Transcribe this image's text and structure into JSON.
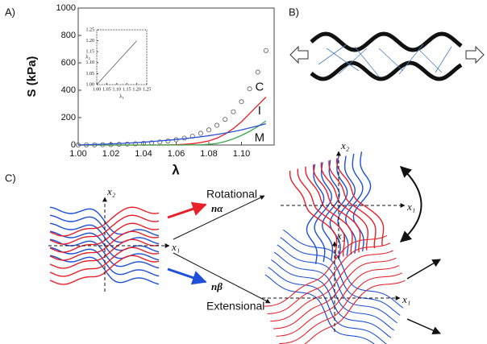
{
  "panel_labels": [
    "A)",
    "B)",
    "C)"
  ],
  "chart_data": [
    {
      "type": "scatter",
      "x_label": "λ",
      "y_label": "S (kPa)",
      "x": [
        1.0,
        1.005,
        1.01,
        1.015,
        1.02,
        1.025,
        1.03,
        1.035,
        1.04,
        1.045,
        1.05,
        1.055,
        1.06,
        1.065,
        1.07,
        1.075,
        1.08,
        1.085,
        1.09,
        1.095,
        1.1,
        1.105,
        1.11,
        1.115
      ],
      "series": [
        {
          "mode": "markers",
          "color": "#555555",
          "values": [
            0,
            1,
            1,
            2,
            3,
            5,
            7,
            9,
            12,
            16,
            22,
            29,
            38,
            50,
            65,
            85,
            110,
            144,
            187,
            243,
            316,
            410,
            532,
            690
          ]
        },
        {
          "name": "C",
          "mode": "line",
          "color": "#e8202a",
          "values": [
            0,
            0,
            0,
            0,
            0,
            0,
            0,
            0,
            0,
            0,
            0,
            1,
            2,
            5,
            10,
            18,
            30,
            50,
            80,
            120,
            170,
            230,
            290,
            350
          ]
        },
        {
          "name": "I",
          "mode": "line",
          "color": "#3aa64a",
          "values": [
            0,
            0,
            0,
            0,
            0,
            0,
            0,
            0,
            0,
            0,
            0,
            0,
            0,
            0,
            1,
            2,
            5,
            12,
            25,
            45,
            70,
            100,
            135,
            175
          ]
        },
        {
          "name": "M",
          "mode": "line",
          "color": "#2a4fd8",
          "values": [
            0,
            2,
            4,
            6,
            8,
            11,
            14,
            17,
            21,
            25,
            30,
            35,
            40,
            46,
            53,
            60,
            68,
            77,
            87,
            98,
            110,
            125,
            140,
            155
          ]
        }
      ],
      "xlim": [
        1.0,
        1.12
      ],
      "xticks": [
        {
          "value": 1.0,
          "label": "1.00"
        },
        1.02,
        1.04,
        1.06,
        1.08,
        {
          "value": 1.1,
          "label": "1.10"
        }
      ],
      "ylim": [
        0,
        1000
      ],
      "yticks": [
        0,
        200,
        400,
        600,
        800,
        1000
      ]
    },
    {
      "type": "line",
      "x_label": "λ₁",
      "y_label": "λ₂",
      "label_color": "#d04040",
      "x": [
        1.0,
        1.2
      ],
      "series": [
        {
          "mode": "line",
          "color": "#555555",
          "values": [
            1.0,
            1.2
          ]
        }
      ],
      "xlim": [
        1.0,
        1.25
      ],
      "xticks": [
        {
          "value": 1.0,
          "label": "1.00"
        },
        1.05,
        {
          "value": 1.1,
          "label": "1.10"
        },
        1.15,
        {
          "value": 1.2,
          "label": "1.20"
        },
        1.25
      ],
      "ylim": [
        1.0,
        1.25
      ],
      "yticks": [
        {
          "value": 1.0,
          "label": "1.00"
        },
        1.05,
        {
          "value": 1.1,
          "label": "1.10"
        },
        1.15,
        {
          "value": 1.2,
          "label": "1.20"
        },
        1.25
      ]
    }
  ],
  "diagram": {
    "rotational": "Rotational",
    "extensional": "Extensional",
    "n_alpha": "nα",
    "n_beta": "nβ",
    "axes": [
      {
        "x1": "x₁",
        "x2": "x₂"
      },
      {
        "x1": "x₁",
        "x2": "x₂"
      },
      {
        "x1": "x₁",
        "x2": "x₂"
      }
    ]
  }
}
